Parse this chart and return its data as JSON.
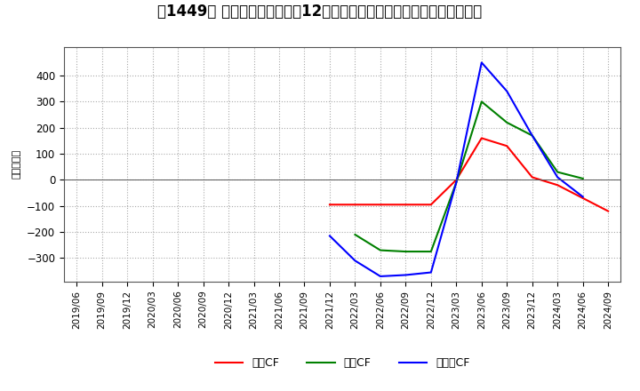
{
  "title": "【1449】 キャッシュフローの12か月移動合計の対前年同期増減額の推移",
  "ylabel": "（百万円）",
  "dates": [
    "2019/06",
    "2019/09",
    "2019/12",
    "2020/03",
    "2020/06",
    "2020/09",
    "2020/12",
    "2021/03",
    "2021/06",
    "2021/09",
    "2021/12",
    "2022/03",
    "2022/06",
    "2022/09",
    "2022/12",
    "2023/03",
    "2023/06",
    "2023/09",
    "2023/12",
    "2024/03",
    "2024/06",
    "2024/09"
  ],
  "operating_cf": [
    null,
    null,
    null,
    null,
    null,
    null,
    null,
    null,
    null,
    null,
    -95,
    -95,
    -95,
    -95,
    -95,
    0,
    160,
    130,
    10,
    -20,
    -70,
    -120
  ],
  "investing_cf": [
    null,
    null,
    null,
    null,
    null,
    null,
    null,
    null,
    null,
    null,
    null,
    -210,
    -270,
    -275,
    -275,
    -10,
    300,
    220,
    170,
    30,
    5,
    null
  ],
  "free_cf": [
    null,
    null,
    null,
    null,
    null,
    null,
    null,
    null,
    null,
    null,
    -215,
    -310,
    -370,
    -365,
    -355,
    -10,
    450,
    340,
    170,
    10,
    -65,
    null
  ],
  "operating_color": "#ff0000",
  "investing_color": "#008000",
  "free_color": "#0000ff",
  "ylim_min": -390,
  "ylim_max": 510,
  "yticks": [
    -300,
    -200,
    -100,
    0,
    100,
    200,
    300,
    400
  ],
  "plot_bg_color": "#ffffff",
  "fig_bg_color": "#ffffff",
  "grid_color": "#aaaaaa",
  "title_fontsize": 12
}
